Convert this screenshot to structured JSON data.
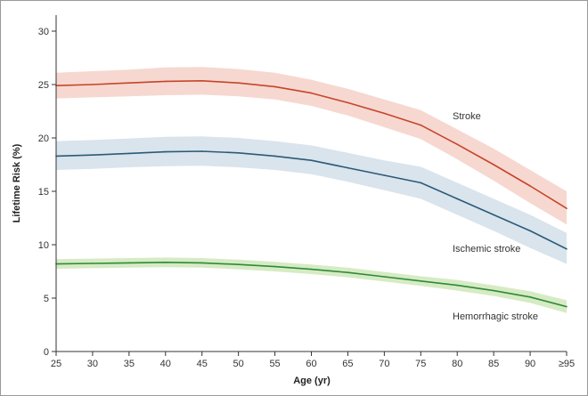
{
  "chart_data": {
    "type": "line",
    "title": "",
    "xlabel": "Age (yr)",
    "ylabel": "Lifetime Risk (%)",
    "xlim": [
      25,
      95
    ],
    "ylim": [
      0,
      30
    ],
    "x_ticks": [
      "25",
      "30",
      "35",
      "40",
      "45",
      "50",
      "55",
      "60",
      "65",
      "70",
      "75",
      "80",
      "85",
      "90",
      "≥95"
    ],
    "y_ticks": [
      "0",
      "5",
      "10",
      "15",
      "20",
      "25",
      "30"
    ],
    "x": [
      25,
      30,
      35,
      40,
      45,
      50,
      55,
      60,
      65,
      70,
      75,
      80,
      85,
      90,
      95
    ],
    "series": [
      {
        "key": "stroke",
        "name": "Stroke",
        "color": "#c8442b",
        "band_color": "#f6d8d0",
        "values": [
          24.9,
          25.0,
          25.15,
          25.3,
          25.35,
          25.15,
          24.8,
          24.2,
          23.3,
          22.3,
          21.2,
          19.4,
          17.5,
          15.5,
          13.4
        ],
        "lower": [
          23.7,
          23.8,
          23.9,
          24.0,
          24.05,
          23.9,
          23.6,
          23.0,
          22.1,
          21.0,
          19.9,
          18.0,
          16.0,
          13.9,
          11.9
        ],
        "upper": [
          26.1,
          26.25,
          26.4,
          26.6,
          26.65,
          26.45,
          26.1,
          25.45,
          24.6,
          23.6,
          22.6,
          20.8,
          19.0,
          17.0,
          15.0
        ]
      },
      {
        "key": "ischemic",
        "name": "Ischemic stroke",
        "color": "#2c5a78",
        "band_color": "#d9e4ed",
        "values": [
          18.3,
          18.4,
          18.55,
          18.7,
          18.75,
          18.6,
          18.3,
          17.9,
          17.2,
          16.5,
          15.8,
          14.3,
          12.8,
          11.3,
          9.6
        ],
        "lower": [
          17.0,
          17.1,
          17.25,
          17.35,
          17.4,
          17.25,
          17.0,
          16.6,
          15.9,
          15.1,
          14.3,
          12.8,
          11.3,
          9.7,
          8.2
        ],
        "upper": [
          19.7,
          19.8,
          19.95,
          20.1,
          20.15,
          20.0,
          19.7,
          19.3,
          18.6,
          17.9,
          17.3,
          15.8,
          14.3,
          12.8,
          11.1
        ]
      },
      {
        "key": "hemorrhagic",
        "name": "Hemorrhagic stroke",
        "color": "#2f8a3a",
        "band_color": "#d6ebc4",
        "values": [
          8.2,
          8.25,
          8.3,
          8.35,
          8.3,
          8.15,
          7.95,
          7.7,
          7.4,
          7.0,
          6.6,
          6.2,
          5.7,
          5.1,
          4.2
        ],
        "lower": [
          7.75,
          7.8,
          7.85,
          7.9,
          7.85,
          7.7,
          7.5,
          7.25,
          6.95,
          6.55,
          6.15,
          5.7,
          5.2,
          4.55,
          3.6
        ],
        "upper": [
          8.65,
          8.7,
          8.75,
          8.8,
          8.75,
          8.6,
          8.4,
          8.15,
          7.85,
          7.45,
          7.05,
          6.7,
          6.2,
          5.65,
          4.8
        ]
      }
    ],
    "annotations": [
      "Stroke",
      "Ischemic stroke",
      "Hemorrhagic stroke"
    ]
  }
}
